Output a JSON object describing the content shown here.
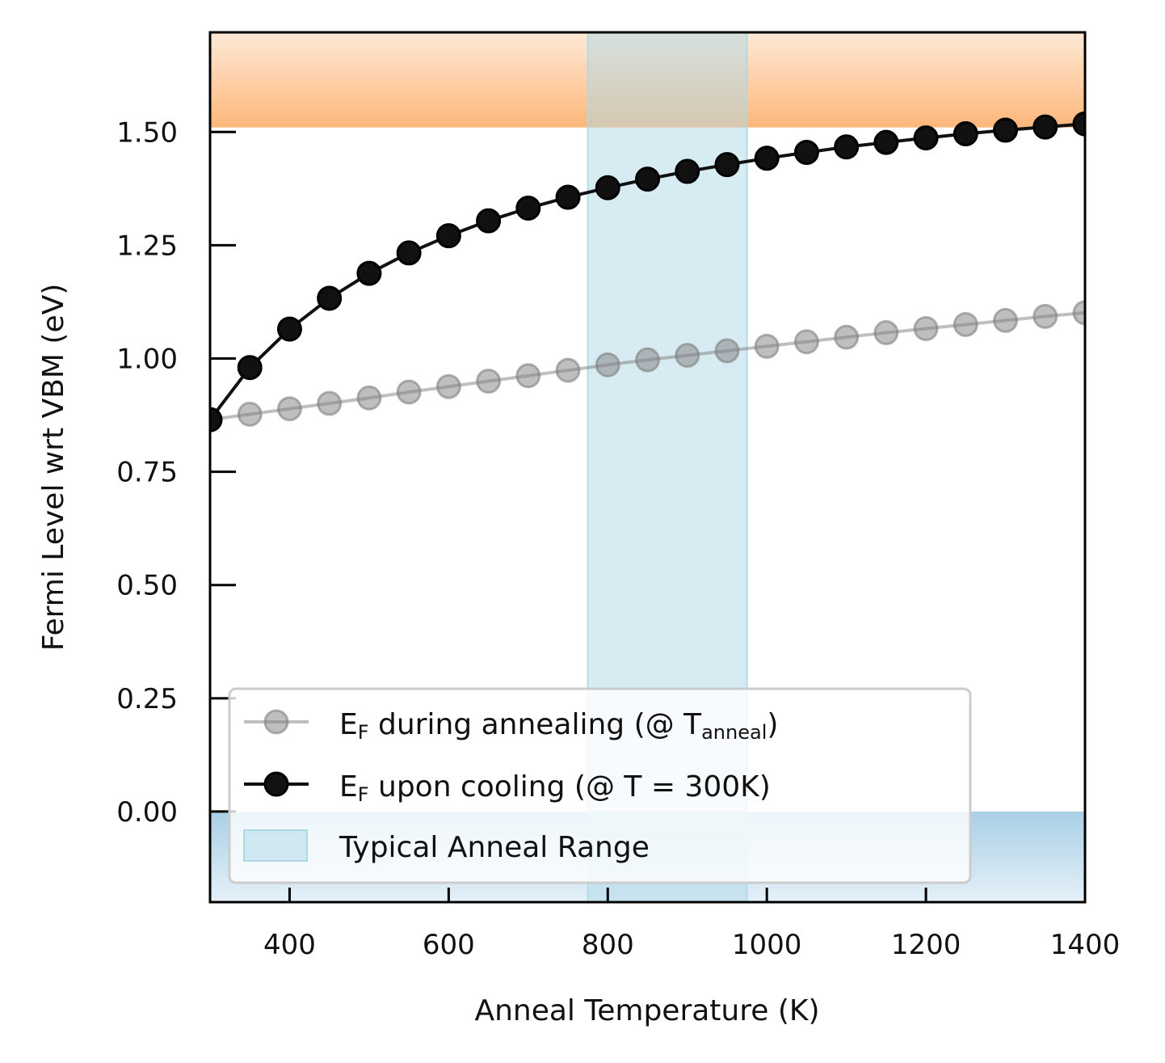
{
  "chart_data": {
    "type": "line",
    "xlabel": "Anneal Temperature (K)",
    "ylabel": "Fermi Level wrt VBM (eV)",
    "xlim": [
      300,
      1400
    ],
    "ylim": [
      -0.2,
      1.72
    ],
    "xticks": [
      400,
      600,
      800,
      1000,
      1200,
      1400
    ],
    "xtick_labels": [
      "400",
      "600",
      "800",
      "1000",
      "1200",
      "1400"
    ],
    "yticks": [
      0.0,
      0.25,
      0.5,
      0.75,
      1.0,
      1.25,
      1.5
    ],
    "ytick_labels": [
      "0.00",
      "0.25",
      "0.50",
      "0.75",
      "1.00",
      "1.25",
      "1.50"
    ],
    "bands": {
      "conduction_band_min": 1.51,
      "valence_band_max": 0.0,
      "conduction_color": "#fdb77a",
      "valence_color": "#a9cfe6"
    },
    "anneal_range": {
      "label": "Typical Anneal Range",
      "x": [
        775,
        975
      ],
      "color": "#add8e6"
    },
    "legend": {
      "placement": "lower-left",
      "entries": [
        {
          "prefix": "E",
          "sub": "F",
          "text": " during annealing (@ T",
          "sub2": "anneal",
          "suffix": ")"
        },
        {
          "prefix": "E",
          "sub": "F",
          "text": " upon cooling (@ T = 300K)",
          "sub2": "",
          "suffix": ""
        },
        {
          "label": "Typical Anneal Range"
        }
      ]
    },
    "series": [
      {
        "name": "EF during annealing (@ Tanneal)",
        "color": "#808080",
        "opacity": 0.5,
        "x": [
          300,
          350,
          400,
          450,
          500,
          550,
          600,
          650,
          700,
          750,
          800,
          850,
          900,
          950,
          1000,
          1050,
          1100,
          1150,
          1200,
          1250,
          1300,
          1350,
          1400
        ],
        "y": [
          0.865,
          0.877,
          0.889,
          0.901,
          0.913,
          0.926,
          0.938,
          0.95,
          0.962,
          0.974,
          0.986,
          0.997,
          1.007,
          1.017,
          1.027,
          1.037,
          1.047,
          1.057,
          1.066,
          1.075,
          1.084,
          1.093,
          1.101
        ]
      },
      {
        "name": "EF upon cooling (@ T = 300K)",
        "color": "#111111",
        "opacity": 1,
        "x": [
          300,
          350,
          400,
          450,
          500,
          550,
          600,
          650,
          700,
          750,
          800,
          850,
          900,
          950,
          1000,
          1050,
          1100,
          1150,
          1200,
          1250,
          1300,
          1350,
          1400
        ],
        "y": [
          0.865,
          0.98,
          1.065,
          1.133,
          1.188,
          1.233,
          1.271,
          1.304,
          1.332,
          1.356,
          1.377,
          1.396,
          1.413,
          1.428,
          1.442,
          1.455,
          1.467,
          1.477,
          1.487,
          1.496,
          1.504,
          1.511,
          1.518
        ]
      }
    ]
  }
}
